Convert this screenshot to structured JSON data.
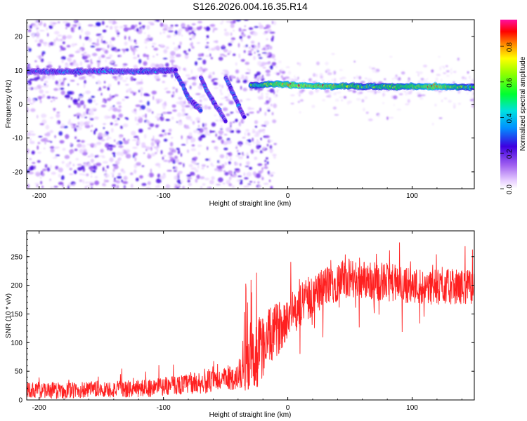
{
  "title": "S126.2026.004.16.35.R14",
  "chart_data": [
    {
      "type": "heatmap",
      "name": "spectrogram",
      "xlabel": "Height of straight line (km)",
      "ylabel": "Frequency (Hz)",
      "xlim": [
        -210,
        150
      ],
      "ylim": [
        -25,
        25
      ],
      "xticks": [
        -200,
        -100,
        0,
        100
      ],
      "xtick_labels": [
        "-200",
        "-100",
        "0",
        "100"
      ],
      "yticks": [
        -20,
        -10,
        0,
        10,
        20
      ],
      "ytick_labels": [
        "-20",
        "-10",
        "0",
        "10",
        "20"
      ],
      "colorbar": {
        "label": "Normalized spectral amplitude",
        "range": [
          0,
          0.95
        ],
        "ticks": [
          0.0,
          0.2,
          0.4,
          0.6,
          0.8
        ],
        "tick_labels": [
          "0.0",
          "0.2",
          "0.4",
          "0.6",
          "0.8"
        ]
      },
      "ridges": [
        {
          "name": "pre-event line",
          "x": [
            -210,
            -180,
            -150,
            -120,
            -105,
            -90
          ],
          "freq": [
            9.7,
            9.6,
            9.8,
            9.6,
            9.9,
            10.0
          ],
          "amplitude": [
            0.28,
            0.32,
            0.3,
            0.3,
            0.33,
            0.3
          ]
        },
        {
          "name": "descending branch 1",
          "x": [
            -90,
            -85,
            -80,
            -75,
            -70
          ],
          "freq": [
            9,
            6,
            2,
            0,
            -2
          ],
          "amplitude": [
            0.28,
            0.35,
            0.32,
            0.3,
            0.28
          ]
        },
        {
          "name": "descending branch 2",
          "x": [
            -70,
            -65,
            -60,
            -55,
            -50
          ],
          "freq": [
            8,
            4,
            1,
            -2,
            -5
          ],
          "amplitude": [
            0.25,
            0.32,
            0.3,
            0.27,
            0.22
          ]
        },
        {
          "name": "descending branch 3",
          "x": [
            -50,
            -45,
            -40,
            -35
          ],
          "freq": [
            8,
            4,
            0,
            -4
          ],
          "amplitude": [
            0.28,
            0.32,
            0.3,
            0.25
          ]
        },
        {
          "name": "post-event line",
          "x": [
            -30,
            -10,
            10,
            30,
            60,
            90,
            120,
            150
          ],
          "freq": [
            5.5,
            6.0,
            5.5,
            5.4,
            5.3,
            5.2,
            5.2,
            5.0
          ],
          "amplitude": [
            0.55,
            0.78,
            0.9,
            0.82,
            0.62,
            0.68,
            0.85,
            0.55
          ]
        }
      ]
    },
    {
      "type": "line",
      "name": "snr",
      "xlabel": "Height of straight line (km)",
      "ylabel": "SNR (10 * v/v)",
      "xlim": [
        -210,
        150
      ],
      "ylim": [
        0,
        295
      ],
      "xticks": [
        -200,
        -100,
        0,
        100
      ],
      "xtick_labels": [
        "-200",
        "-100",
        "0",
        "100"
      ],
      "yticks": [
        0,
        50,
        100,
        150,
        200,
        250
      ],
      "ytick_labels": [
        "0",
        "50",
        "100",
        "150",
        "200",
        "250"
      ],
      "color": "#ff2020",
      "trend": {
        "x": [
          -210,
          -180,
          -150,
          -120,
          -100,
          -80,
          -60,
          -40,
          -30,
          -25,
          -20,
          -10,
          0,
          10,
          20,
          30,
          40,
          50,
          60,
          70,
          80,
          90,
          100,
          110,
          120,
          130,
          140,
          150
        ],
        "y": [
          17,
          16,
          18,
          19,
          24,
          28,
          32,
          40,
          58,
          80,
          95,
          120,
          145,
          165,
          185,
          198,
          207,
          212,
          210,
          208,
          206,
          202,
          200,
          198,
          196,
          198,
          197,
          198
        ]
      },
      "noise_amplitude": {
        "x": [
          -210,
          -100,
          -40,
          -25,
          0,
          50,
          150
        ],
        "y": [
          14,
          16,
          22,
          60,
          40,
          35,
          30
        ]
      }
    }
  ]
}
